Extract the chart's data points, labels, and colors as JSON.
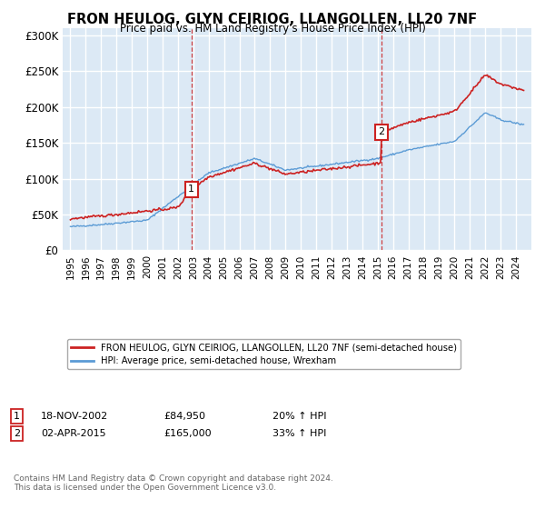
{
  "title": "FRON HEULOG, GLYN CEIRIOG, LLANGOLLEN, LL20 7NF",
  "subtitle": "Price paid vs. HM Land Registry's House Price Index (HPI)",
  "legend_label_red": "FRON HEULOG, GLYN CEIRIOG, LLANGOLLEN, LL20 7NF (semi-detached house)",
  "legend_label_blue": "HPI: Average price, semi-detached house, Wrexham",
  "footer": "Contains HM Land Registry data © Crown copyright and database right 2024.\nThis data is licensed under the Open Government Licence v3.0.",
  "transaction1_label": "1",
  "transaction1_date": "18-NOV-2002",
  "transaction1_price": "£84,950",
  "transaction1_hpi": "20% ↑ HPI",
  "transaction2_label": "2",
  "transaction2_date": "02-APR-2015",
  "transaction2_price": "£165,000",
  "transaction2_hpi": "33% ↑ HPI",
  "vline1_x": 2002.88,
  "vline2_x": 2015.25,
  "ylim": [
    0,
    310000
  ],
  "xlim": [
    1994.5,
    2025.0
  ],
  "yticks": [
    0,
    50000,
    100000,
    150000,
    200000,
    250000,
    300000
  ],
  "ytick_labels": [
    "£0",
    "£50K",
    "£100K",
    "£150K",
    "£200K",
    "£250K",
    "£300K"
  ],
  "background_color": "#dce9f5",
  "red_color": "#cc2222",
  "blue_color": "#5b9bd5",
  "grid_color": "#ffffff",
  "fig_bg": "#ffffff"
}
